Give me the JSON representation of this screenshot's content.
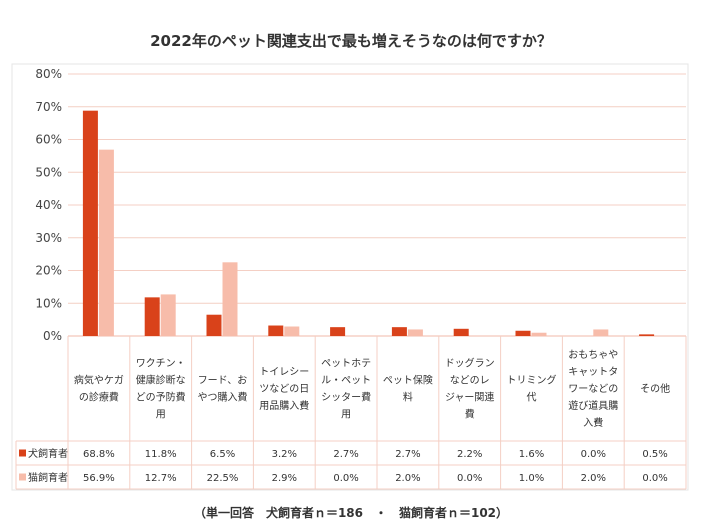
{
  "chart_data": {
    "type": "bar",
    "title": "2022年のペット関連支出で最も増えそうなのは何ですか？",
    "footnote": "（単一回答　犬飼育者ｎ＝186　・　猫飼育者ｎ＝102）",
    "ylim": [
      0,
      80
    ],
    "yticks": [
      "0%",
      "10%",
      "20%",
      "30%",
      "40%",
      "50%",
      "60%",
      "70%",
      "80%"
    ],
    "grid": true,
    "legend_placement": "table-rows",
    "categories": [
      [
        "病気やケガ",
        "の診療費"
      ],
      [
        "ワクチン・",
        "健康診断な",
        "どの予防費",
        "用"
      ],
      [
        "フード、お",
        "やつ購入費"
      ],
      [
        "トイレシー",
        "ツなどの日",
        "用品購入費"
      ],
      [
        "ペットホテ",
        "ル・ペット",
        "シッター費",
        "用"
      ],
      [
        "ペット保険",
        "料"
      ],
      [
        "ドッグラン",
        "などのレ",
        "ジャー関連",
        "費"
      ],
      [
        "トリミング",
        "代"
      ],
      [
        "おもちゃや",
        "キャットタ",
        "ワーなどの",
        "遊び道具購",
        "入費"
      ],
      [
        "その他"
      ]
    ],
    "series": [
      {
        "name": "犬飼育者",
        "color": "#d9421a",
        "values": [
          68.8,
          11.8,
          6.5,
          3.2,
          2.7,
          2.7,
          2.2,
          1.6,
          0.0,
          0.5
        ],
        "labels": [
          "68.8%",
          "11.8%",
          "6.5%",
          "3.2%",
          "2.7%",
          "2.7%",
          "2.2%",
          "1.6%",
          "0.0%",
          "0.5%"
        ]
      },
      {
        "name": "猫飼育者",
        "color": "#f7bcaa",
        "values": [
          56.9,
          12.7,
          22.5,
          2.9,
          0.0,
          2.0,
          0.0,
          1.0,
          2.0,
          0.0
        ],
        "labels": [
          "56.9%",
          "12.7%",
          "22.5%",
          "2.9%",
          "0.0%",
          "2.0%",
          "0.0%",
          "1.0%",
          "2.0%",
          "0.0%"
        ]
      }
    ]
  }
}
